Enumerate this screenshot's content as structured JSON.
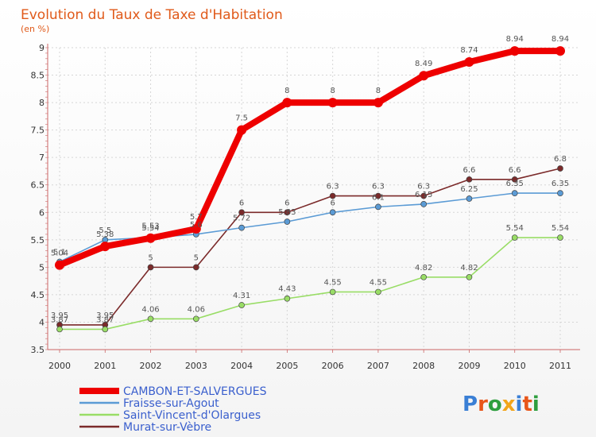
{
  "chart_data": {
    "type": "line",
    "title": "Evolution du Taux de Taxe d'Habitation",
    "subtitle": "(en %)",
    "categories": [
      "2000",
      "2001",
      "2002",
      "2003",
      "2004",
      "2005",
      "2006",
      "2007",
      "2008",
      "2009",
      "2010",
      "2011"
    ],
    "ylim": [
      3.5,
      9
    ],
    "yticks": [
      3.5,
      4,
      4.5,
      5,
      5.5,
      6,
      6.5,
      7,
      7.5,
      8,
      8.5,
      9
    ],
    "grid": true,
    "legend_position": "bottom-left",
    "series": [
      {
        "name": "CAMBON-ET-SALVERGUES",
        "color": "#ee0000",
        "values": [
          5.04,
          5.38,
          5.53,
          5.7,
          7.5,
          8,
          8,
          8,
          8.49,
          8.74,
          8.94,
          8.94
        ],
        "labels": [
          "5.04",
          "5.38",
          "5.53",
          "5.7",
          "7.5",
          "8",
          "8",
          "8",
          "8.49",
          "8.74",
          "8.94",
          "8.94"
        ]
      },
      {
        "name": "Fraisse-sur-Agout",
        "color": "#5b9bd5",
        "values": [
          5.1,
          5.5,
          5.54,
          5.6,
          5.72,
          5.83,
          6,
          6.1,
          6.15,
          6.25,
          6.35,
          6.35
        ],
        "labels": [
          "5.1",
          "5.5",
          "5.54",
          "5.6",
          "5.72",
          "5.83",
          "6",
          "6.1",
          "6.15",
          "6.25",
          "6.35",
          "6.35"
        ]
      },
      {
        "name": "Saint-Vincent-d'Olargues",
        "color": "#99dd66",
        "values": [
          3.87,
          3.87,
          4.06,
          4.06,
          4.31,
          4.43,
          4.55,
          4.55,
          4.82,
          4.82,
          5.54,
          5.54
        ],
        "labels": [
          "3.87",
          "3.87",
          "4.06",
          "4.06",
          "4.31",
          "4.43",
          "4.55",
          "4.55",
          "4.82",
          "4.82",
          "5.54",
          "5.54"
        ]
      },
      {
        "name": "Murat-sur-Vèbre",
        "color": "#7b2a2a",
        "values": [
          3.95,
          3.95,
          5,
          5,
          6,
          6,
          6.3,
          6.3,
          6.3,
          6.6,
          6.6,
          6.8
        ],
        "labels": [
          "3.95",
          "3.95",
          "5",
          "5",
          "6",
          "6",
          "6.3",
          "6.3",
          "6.3",
          "6.6",
          "6.6",
          "6.8"
        ]
      }
    ]
  },
  "logo": {
    "text": "Proxiti"
  }
}
